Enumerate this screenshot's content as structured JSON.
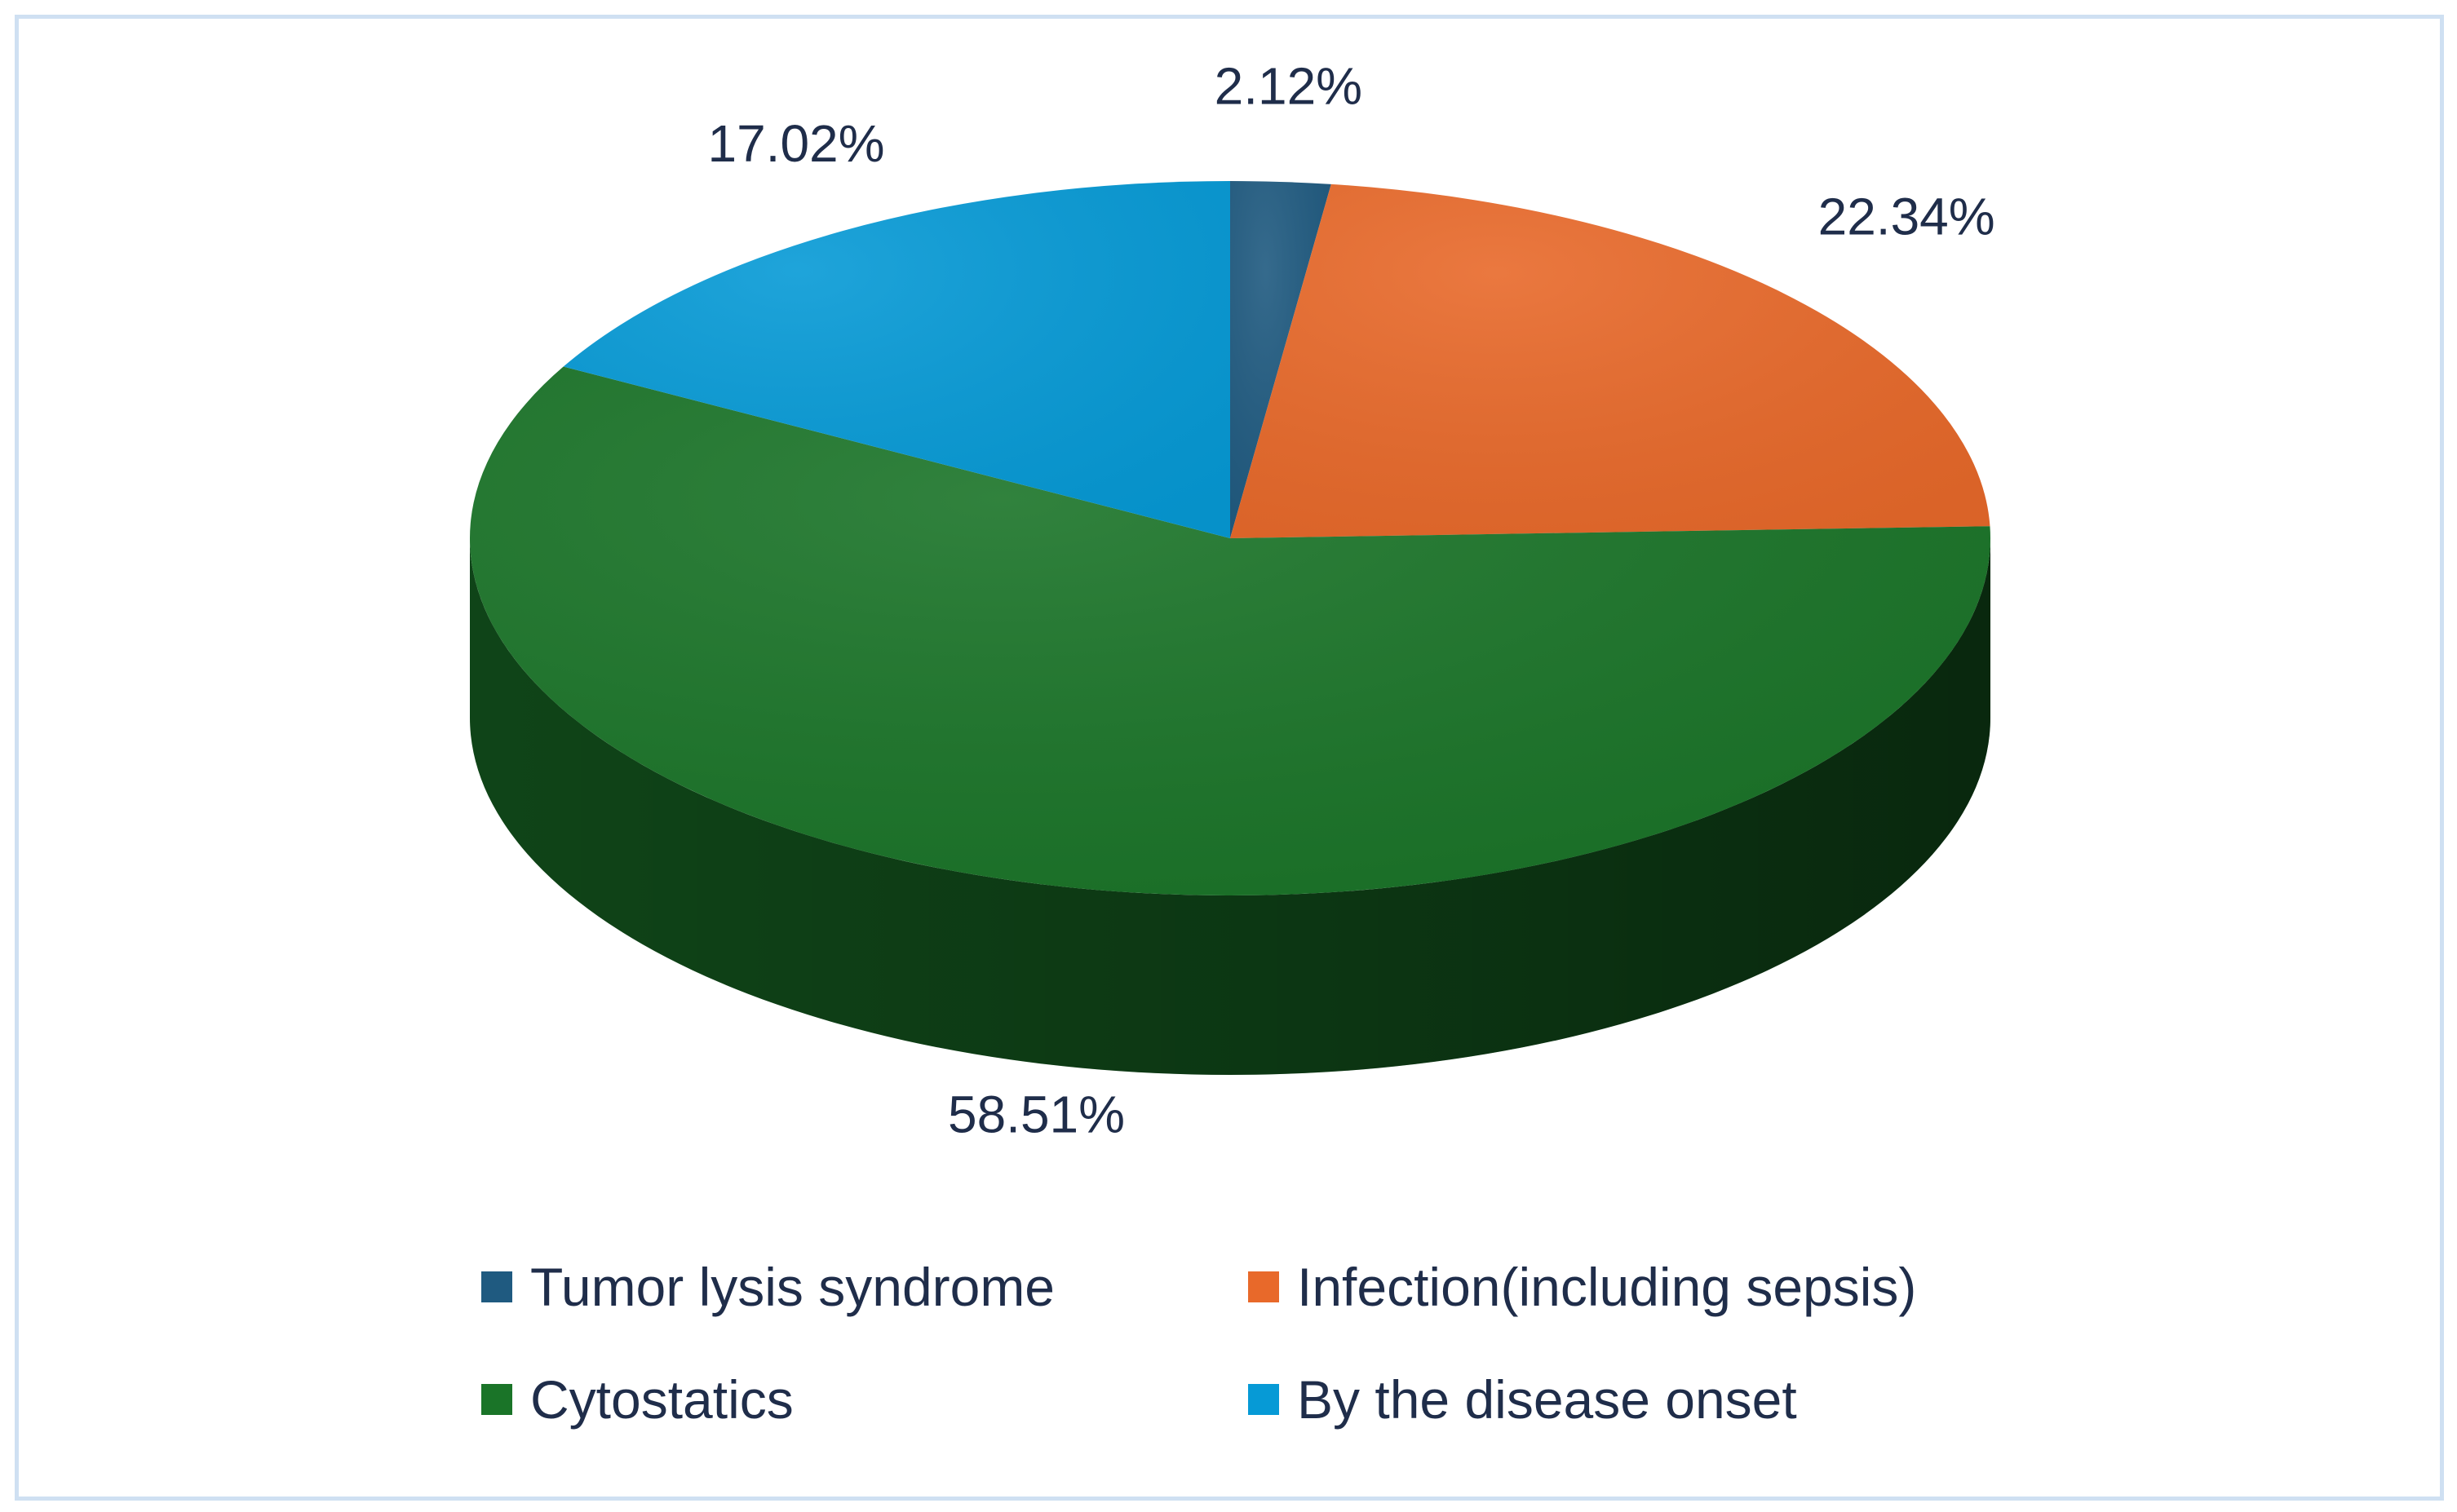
{
  "chart_data": {
    "type": "pie",
    "style": "3d",
    "title": "",
    "categories": [
      "Tumor lysis syndrome",
      "Infection(including sepsis)",
      "Cytostatics",
      "By the disease onset"
    ],
    "values": [
      2.12,
      22.34,
      58.51,
      17.02
    ],
    "value_labels": [
      "2.12%",
      "22.34%",
      "58.51%",
      "17.02%"
    ],
    "colors": [
      "#1f5a80",
      "#e8692a",
      "#1a7428",
      "#069ad6"
    ],
    "legend_position": "bottom"
  }
}
